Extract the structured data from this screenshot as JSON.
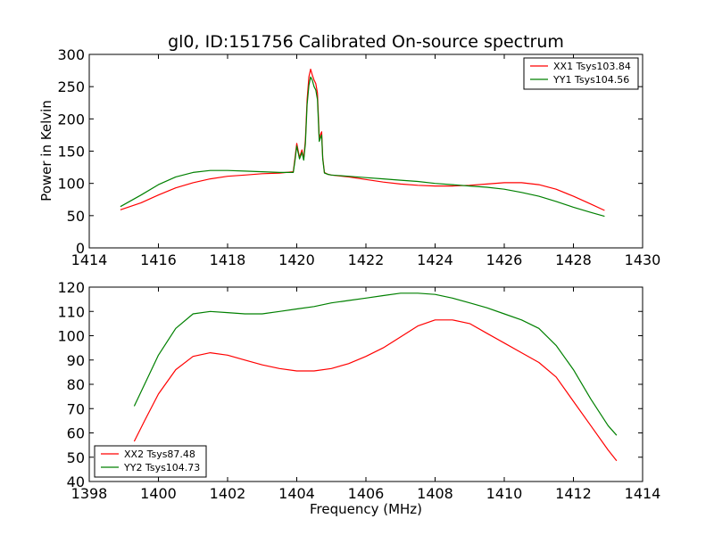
{
  "chart_data": [
    {
      "type": "line",
      "title": "gl0, ID:151756 Calibrated On-source spectrum",
      "xlabel": "",
      "ylabel": "Power in Kelvin",
      "xlim": [
        1414,
        1430
      ],
      "ylim": [
        0,
        300
      ],
      "xticks": [
        1414,
        1416,
        1418,
        1420,
        1422,
        1424,
        1426,
        1428,
        1430
      ],
      "yticks": [
        0,
        50,
        100,
        150,
        200,
        250,
        300
      ],
      "legend_position": "top-right",
      "series": [
        {
          "name": "XX1 Tsys103.84",
          "color": "#ff0000",
          "x": [
            1414.9,
            1415.5,
            1416.0,
            1416.5,
            1417.0,
            1417.5,
            1418.0,
            1418.5,
            1419.0,
            1419.5,
            1419.9,
            1419.95,
            1420.0,
            1420.08,
            1420.15,
            1420.2,
            1420.25,
            1420.3,
            1420.35,
            1420.4,
            1420.45,
            1420.5,
            1420.55,
            1420.6,
            1420.65,
            1420.68,
            1420.72,
            1420.75,
            1420.8,
            1420.9,
            1421.0,
            1421.5,
            1422.0,
            1422.5,
            1423.0,
            1423.5,
            1424.0,
            1424.5,
            1425.0,
            1425.5,
            1426.0,
            1426.5,
            1427.0,
            1427.5,
            1428.0,
            1428.5,
            1428.9
          ],
          "y": [
            59,
            70,
            82,
            93,
            101,
            107,
            111,
            113,
            115,
            116,
            118,
            140,
            162,
            140,
            152,
            138,
            168,
            230,
            265,
            277,
            268,
            260,
            255,
            240,
            170,
            175,
            180,
            140,
            117,
            114,
            113,
            110,
            106,
            102,
            99,
            97,
            96,
            96,
            97,
            99,
            101,
            101,
            98,
            91,
            80,
            68,
            58
          ]
        },
        {
          "name": "YY1 Tsys104.56",
          "color": "#008000",
          "x": [
            1414.9,
            1415.5,
            1416.0,
            1416.5,
            1417.0,
            1417.5,
            1418.0,
            1418.5,
            1419.0,
            1419.5,
            1419.9,
            1419.95,
            1420.0,
            1420.08,
            1420.15,
            1420.2,
            1420.25,
            1420.3,
            1420.35,
            1420.4,
            1420.45,
            1420.5,
            1420.55,
            1420.6,
            1420.65,
            1420.68,
            1420.72,
            1420.75,
            1420.8,
            1420.9,
            1421.0,
            1421.5,
            1422.0,
            1422.5,
            1423.0,
            1423.5,
            1424.0,
            1424.5,
            1425.0,
            1425.5,
            1426.0,
            1426.5,
            1427.0,
            1427.5,
            1428.0,
            1428.5,
            1428.9
          ],
          "y": [
            64,
            82,
            98,
            110,
            117,
            120,
            120,
            119,
            118,
            117,
            117,
            136,
            158,
            138,
            148,
            136,
            162,
            222,
            252,
            265,
            260,
            250,
            245,
            230,
            165,
            170,
            175,
            138,
            116,
            114,
            113,
            111,
            109,
            107,
            105,
            103,
            100,
            98,
            96,
            94,
            91,
            86,
            80,
            72,
            63,
            55,
            49
          ]
        }
      ]
    },
    {
      "type": "line",
      "title": "",
      "xlabel": "Frequency (MHz)",
      "ylabel": "",
      "xlim": [
        1398,
        1414
      ],
      "ylim": [
        40,
        120
      ],
      "xticks": [
        1398,
        1400,
        1402,
        1404,
        1406,
        1408,
        1410,
        1412,
        1414
      ],
      "yticks": [
        40,
        50,
        60,
        70,
        80,
        90,
        100,
        110,
        120
      ],
      "legend_position": "bottom-left",
      "series": [
        {
          "name": "XX2 Tsys87.48",
          "color": "#ff0000",
          "x": [
            1399.3,
            1399.6,
            1400.0,
            1400.5,
            1401.0,
            1401.5,
            1402.0,
            1402.5,
            1403.0,
            1403.5,
            1404.0,
            1404.5,
            1405.0,
            1405.5,
            1406.0,
            1406.5,
            1407.0,
            1407.5,
            1408.0,
            1408.5,
            1409.0,
            1409.5,
            1410.0,
            1410.5,
            1411.0,
            1411.5,
            1412.0,
            1412.5,
            1413.0,
            1413.25
          ],
          "y": [
            56.5,
            65,
            76,
            86,
            91.5,
            93,
            92,
            90,
            88,
            86.5,
            85.5,
            85.5,
            86.5,
            88.5,
            91.5,
            95,
            99.5,
            104,
            106.5,
            106.5,
            105,
            101,
            97,
            93,
            89,
            83,
            73,
            63,
            53,
            48.5
          ]
        },
        {
          "name": "YY2 Tsys104.73",
          "color": "#008000",
          "x": [
            1399.3,
            1399.6,
            1400.0,
            1400.5,
            1401.0,
            1401.5,
            1402.0,
            1402.5,
            1403.0,
            1403.5,
            1404.0,
            1404.5,
            1405.0,
            1405.5,
            1406.0,
            1406.5,
            1407.0,
            1407.5,
            1408.0,
            1408.5,
            1409.0,
            1409.5,
            1410.0,
            1410.5,
            1411.0,
            1411.5,
            1412.0,
            1412.5,
            1413.0,
            1413.25
          ],
          "y": [
            71,
            80,
            92,
            103,
            109,
            110,
            109.5,
            109,
            109,
            110,
            111,
            112,
            113.5,
            114.5,
            115.5,
            116.5,
            117.5,
            117.5,
            117,
            115.5,
            113.5,
            111.5,
            109,
            106.5,
            103,
            96,
            86,
            74,
            63,
            59
          ]
        }
      ]
    }
  ]
}
